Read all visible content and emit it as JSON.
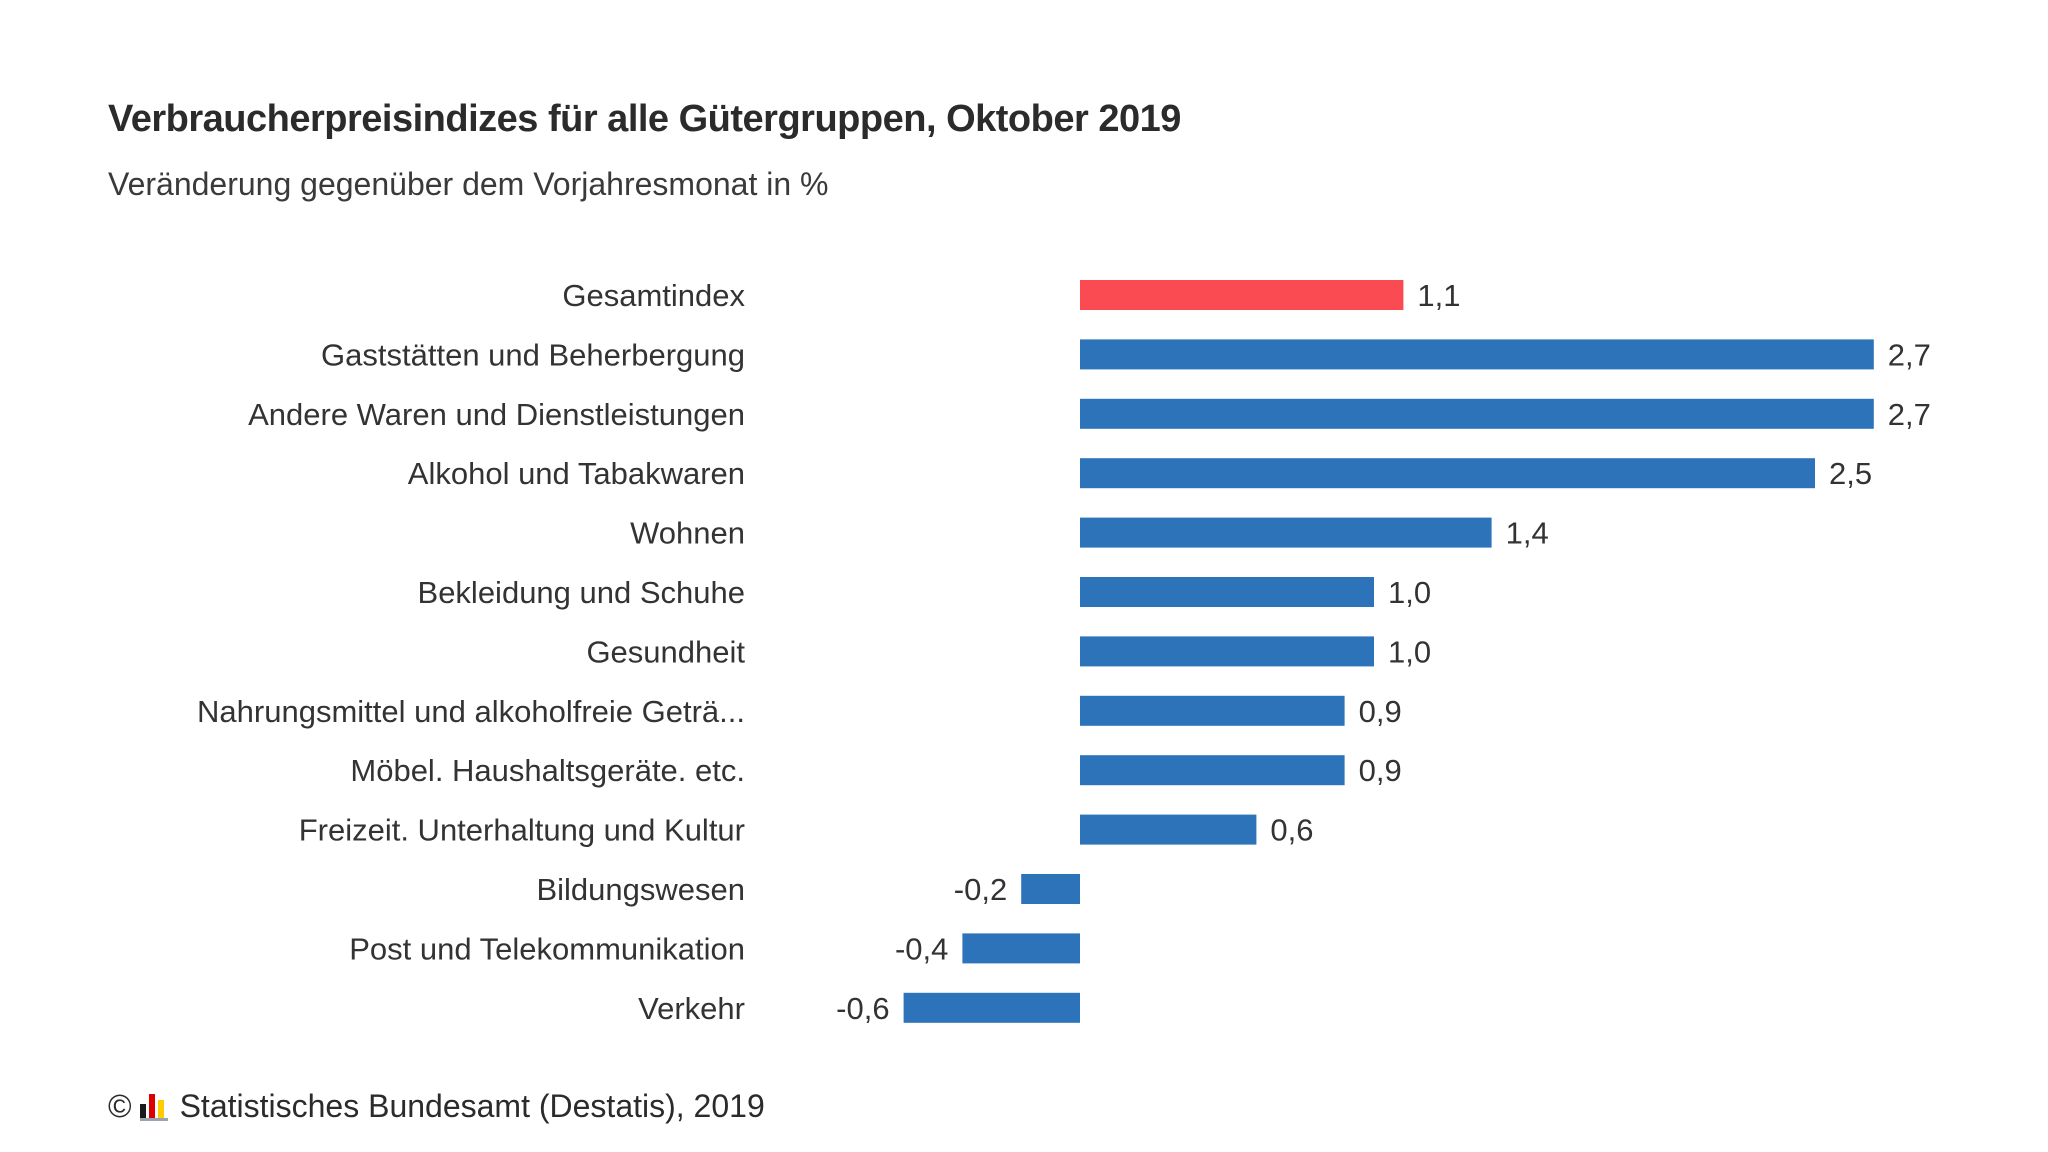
{
  "title": "Verbraucherpreisindizes für alle Gütergruppen, Oktober 2019",
  "subtitle": "Veränderung gegenüber dem Vorjahresmonat in %",
  "footer": {
    "copyright": "©",
    "source": "Statistisches Bundesamt (Destatis), 2019",
    "logo_icon": "destatis-logo-icon"
  },
  "colors": {
    "highlight": "#fa4a52",
    "bar": "#2d73b9",
    "text": "#333333",
    "logo_black": "#1a1a1a",
    "logo_red": "#dd0000",
    "logo_gold": "#ffcc00",
    "logo_base": "#9aa3ad"
  },
  "chart_data": {
    "type": "bar",
    "orientation": "horizontal",
    "categories": [
      "Gesamtindex",
      "Gaststätten und Beherbergung",
      "Andere Waren und Dienstleistungen",
      "Alkohol und Tabakwaren",
      "Wohnen",
      "Bekleidung und Schuhe",
      "Gesundheit",
      "Nahrungsmittel und alkoholfreie Geträ...",
      "Möbel. Haushaltsgeräte. etc.",
      "Freizeit. Unterhaltung und Kultur",
      "Bildungswesen",
      "Post und Telekommunikation",
      "Verkehr"
    ],
    "values": [
      1.1,
      2.7,
      2.7,
      2.5,
      1.4,
      1.0,
      1.0,
      0.9,
      0.9,
      0.6,
      -0.2,
      -0.4,
      -0.6
    ],
    "value_labels": [
      "1,1",
      "2,7",
      "2,7",
      "2,5",
      "1,4",
      "1,0",
      "1,0",
      "0,9",
      "0,9",
      "0,6",
      "-0,2",
      "-0,4",
      "-0,6"
    ],
    "highlighted_category": "Gesamtindex",
    "xlim": [
      -0.6,
      2.7
    ],
    "grid": false,
    "legend": "none"
  }
}
